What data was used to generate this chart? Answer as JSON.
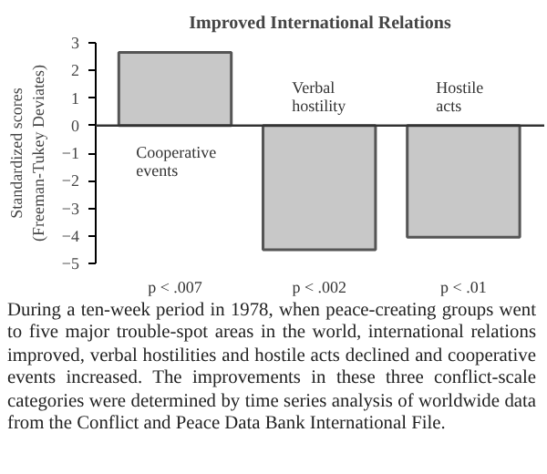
{
  "chart_data": {
    "type": "bar",
    "title": "Improved International Relations",
    "ylabel": "Standardized scores\n(Freeman-Tukey Deviates)",
    "categories": [
      "Cooperative events",
      "Verbal hostility",
      "Hostile acts"
    ],
    "values": [
      2.65,
      -4.5,
      -4.05
    ],
    "color": "#c8c8c8",
    "ylim": [
      -5,
      3
    ],
    "yticks": [
      -5,
      -4,
      -3,
      -2,
      -1,
      0,
      1,
      2,
      3
    ],
    "grid": false,
    "tick_labels": "y",
    "annotations": [
      "p < .007",
      "p < .002",
      "p < .01",
      "During a ten-week period in 1978, when peace-creating groups went to five major trouble-spot areas in the world, international relations improved, verbal hostilities and hostile acts declined and cooperative events increased. The improvements in these three conflict-scale categories were determined by time series analysis of worldwide data from the Conflict and Peace Data Bank International File."
    ]
  }
}
